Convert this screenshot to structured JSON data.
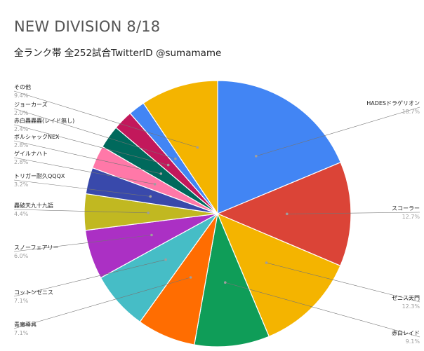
{
  "chart_data": {
    "type": "pie",
    "title": "NEW DIVISION 8/18",
    "subtitle": "全ランク帯 全252試合TwitterID @sumamame",
    "slices": [
      {
        "name": "HADESドラゲリオン",
        "pct_label": "18.7%",
        "value": 18.7,
        "color": "#4285f4"
      },
      {
        "name": "スコーラー",
        "pct_label": "12.7%",
        "value": 12.7,
        "color": "#db4437"
      },
      {
        "name": "ゼニス天門",
        "pct_label": "12.3%",
        "value": 12.3,
        "color": "#f4b400"
      },
      {
        "name": "赤白レイド",
        "pct_label": "9.1%",
        "value": 9.1,
        "color": "#0f9d58"
      },
      {
        "name": "青魔導具",
        "pct_label": "7.1%",
        "value": 7.1,
        "color": "#ff6d01"
      },
      {
        "name": "コットンゼニス",
        "pct_label": "7.1%",
        "value": 7.1,
        "color": "#46bdc6"
      },
      {
        "name": "スノーフェアリー",
        "pct_label": "6.0%",
        "value": 6.0,
        "color": "#ab30c4"
      },
      {
        "name": "轟破天九十九語",
        "pct_label": "4.4%",
        "value": 4.4,
        "color": "#c1b821"
      },
      {
        "name": "トリガー耐久QQQX",
        "pct_label": "3.2%",
        "value": 3.2,
        "color": "#3949ab"
      },
      {
        "name": "ゲイルナハト",
        "pct_label": "2.8%",
        "value": 2.8,
        "color": "#ff78a8"
      },
      {
        "name": "ボルシャックNEX",
        "pct_label": "2.8%",
        "value": 2.8,
        "color": "#00695c"
      },
      {
        "name": "赤白轟轟轟(レイド無し)",
        "pct_label": "2.4%",
        "value": 2.4,
        "color": "#c2185b"
      },
      {
        "name": "ジョーカーズ",
        "pct_label": "2.0%",
        "value": 2.0,
        "color": "#4285f4"
      },
      {
        "name": "その他",
        "pct_label": "9.4%",
        "value": 9.4,
        "color": "#f4b400"
      }
    ]
  }
}
